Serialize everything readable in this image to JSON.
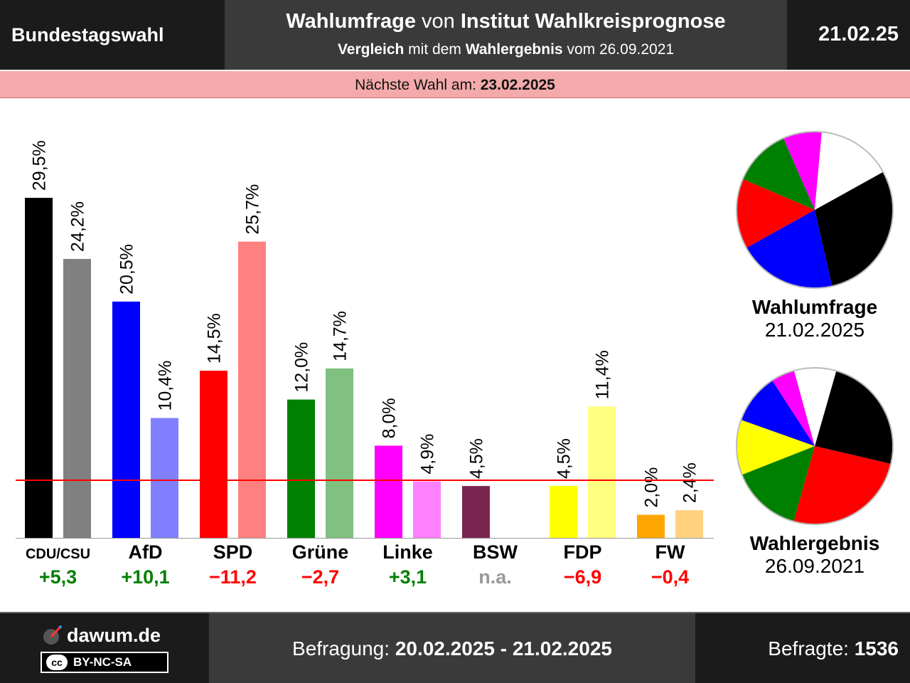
{
  "header": {
    "left_title": "Bundestagswahl",
    "title_part1": "Wahlumfrage",
    "title_part2": " von ",
    "title_part3": "Institut Wahlkreisprognose",
    "subtitle_part1": "Vergleich",
    "subtitle_part2": " mit dem ",
    "subtitle_part3": "Wahlergebnis",
    "subtitle_part4": " vom 26.09.2021",
    "date": "21.02.25"
  },
  "next_election": {
    "label": "Nächste Wahl am: ",
    "date": "23.02.2025"
  },
  "chart_data": {
    "type": "bar",
    "categories": [
      "CDU/CSU",
      "AfD",
      "SPD",
      "Grüne",
      "Linke",
      "BSW",
      "FDP",
      "FW"
    ],
    "series": [
      {
        "values": [
          29.5,
          20.5,
          14.5,
          12.0,
          8.0,
          4.5,
          4.5,
          2.0
        ],
        "labels": [
          "29,5%",
          "20,5%",
          "14,5%",
          "12,0%",
          "8,0%",
          "4,5%",
          "4,5%",
          "2,0%"
        ],
        "colors": [
          "#000000",
          "#0000ff",
          "#ff0000",
          "#008000",
          "#ff00ff",
          "#7b2450",
          "#ffff00",
          "#ffa500"
        ]
      },
      {
        "values": [
          24.2,
          10.4,
          25.7,
          14.7,
          4.9,
          null,
          11.4,
          2.4
        ],
        "labels": [
          "24,2%",
          "10,4%",
          "25,7%",
          "14,7%",
          "4,9%",
          "",
          "11,4%",
          "2,4%"
        ],
        "colors": [
          "#808080",
          "#8080ff",
          "#ff8080",
          "#80c080",
          "#ff80ff",
          "#bd92a8",
          "#ffff80",
          "#ffd280"
        ]
      }
    ],
    "changes": [
      "+5,3",
      "+10,1",
      "−11,2",
      "−2,7",
      "+3,1",
      "n.a.",
      "−6,9",
      "−0,4"
    ],
    "change_colors": [
      "#008000",
      "#008000",
      "#ff0000",
      "#ff0000",
      "#008000",
      "#999999",
      "#ff0000",
      "#ff0000"
    ],
    "threshold": 5,
    "threshold_color": "#ff0000",
    "ylim": [
      0,
      30
    ],
    "xlabel": "",
    "ylabel": "",
    "pies": [
      {
        "title": "Wahlumfrage",
        "date": "21.02.2025",
        "order": [
          "CDU/CSU",
          "AfD",
          "SPD",
          "Grüne",
          "Linke"
        ],
        "values": [
          29.5,
          20.5,
          14.5,
          12.0,
          8.0
        ],
        "colors": [
          "#000000",
          "#0000ff",
          "#ff0000",
          "#008000",
          "#ff00ff"
        ]
      },
      {
        "title": "Wahlergebnis",
        "date": "26.09.2021",
        "order": [
          "CDU/CSU",
          "SPD",
          "Grüne",
          "FDP",
          "AfD",
          "Linke"
        ],
        "values": [
          24.2,
          25.7,
          14.7,
          11.4,
          10.4,
          4.9
        ],
        "colors": [
          "#000000",
          "#ff0000",
          "#008000",
          "#ffff00",
          "#0000ff",
          "#ff00ff"
        ]
      }
    ]
  },
  "footer": {
    "site": "dawum.de",
    "license_cc": "cc",
    "license": "BY-NC-SA",
    "survey_label": "Befragung: ",
    "survey_dates": "20.02.2025 - 21.02.2025",
    "respondents_label": "Befragte: ",
    "respondents": "1536"
  }
}
